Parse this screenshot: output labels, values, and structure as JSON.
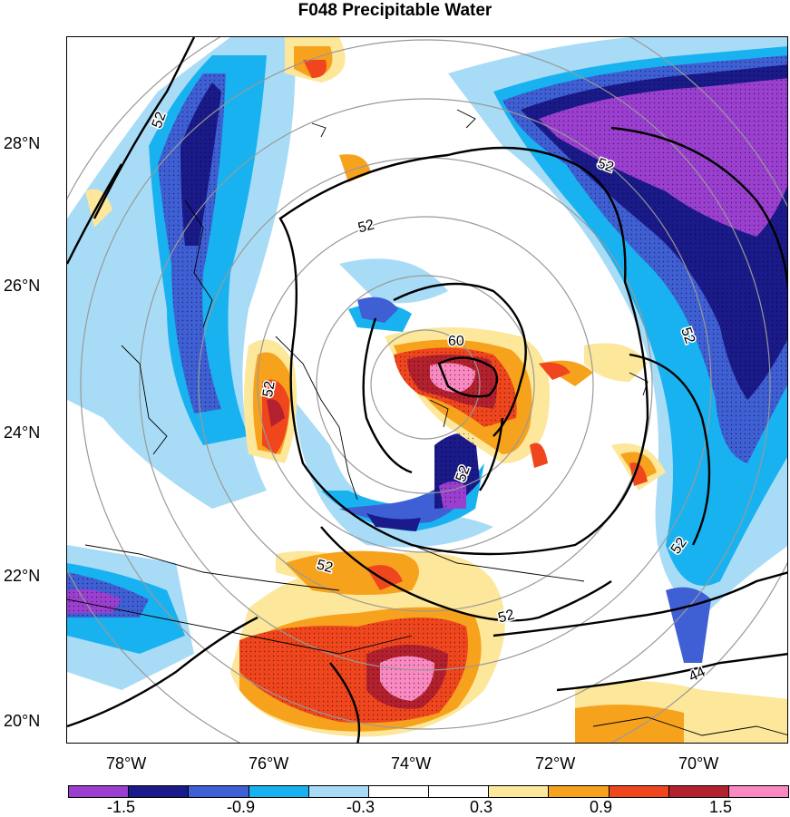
{
  "title": "F048 Precipitable Water",
  "lat_labels": [
    "28°N",
    "26°N",
    "24°N",
    "22°N",
    "20°N"
  ],
  "lon_labels": [
    "78°W",
    "76°W",
    "74°W",
    "72°W",
    "70°W"
  ],
  "contour_labels": [
    "52",
    "52",
    "52",
    "60",
    "52",
    "52",
    "52",
    "52",
    "52",
    "52",
    "44"
  ],
  "colorbar": {
    "colors": [
      "#9b3fd0",
      "#1a1a8a",
      "#3f5fd4",
      "#19b2f0",
      "#a8dcf6",
      "#ffffff",
      "#ffffff",
      "#fce79a",
      "#f7a21d",
      "#f0461e",
      "#b4212e",
      "#f989c0"
    ],
    "labels": [
      "-1.5",
      "-0.9",
      "-0.3",
      "0.3",
      "0.9",
      "1.5"
    ]
  }
}
